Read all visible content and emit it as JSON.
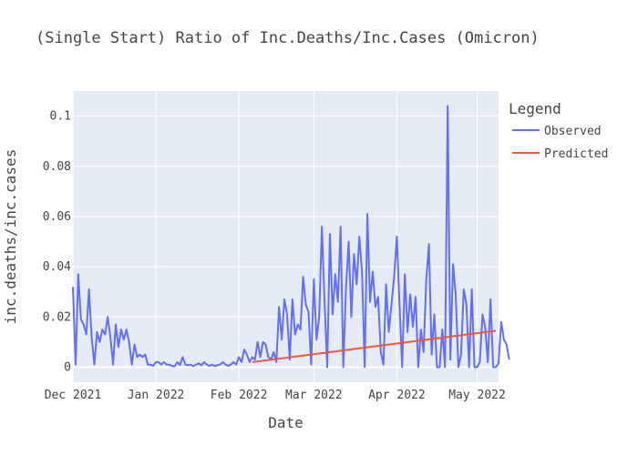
{
  "colors": {
    "plot_bg": "#e5ecf6",
    "grid": "#ffffff",
    "observed": "#636efa",
    "predicted": "#ef553b",
    "text": "#444444"
  },
  "chart_data": {
    "type": "line",
    "title": "(Single Start) Ratio of Inc.Deaths/Inc.Cases (Omicron)",
    "xlabel": "Date",
    "ylabel": "inc.deaths/inc.cases",
    "xlim": [
      "2021-12-01",
      "2022-05-09"
    ],
    "ylim": [
      -0.006,
      0.11
    ],
    "x_ticks": [
      {
        "date": "2021-12-01",
        "label": "Dec 2021"
      },
      {
        "date": "2022-01-01",
        "label": "Jan 2022"
      },
      {
        "date": "2022-02-01",
        "label": "Feb 2022"
      },
      {
        "date": "2022-03-01",
        "label": "Mar 2022"
      },
      {
        "date": "2022-04-01",
        "label": "Apr 2022"
      },
      {
        "date": "2022-05-01",
        "label": "May 2022"
      }
    ],
    "y_ticks": [
      {
        "value": 0,
        "label": "0"
      },
      {
        "value": 0.02,
        "label": "0.02"
      },
      {
        "value": 0.04,
        "label": "0.04"
      },
      {
        "value": 0.06,
        "label": "0.06"
      },
      {
        "value": 0.08,
        "label": "0.08"
      },
      {
        "value": 0.1,
        "label": "0.1"
      }
    ],
    "grid": true,
    "legend": {
      "title": "Legend",
      "placement": "right"
    },
    "series": [
      {
        "name": "Observed",
        "start": "2021-12-01",
        "step_days": 1,
        "values": [
          0.032,
          0.001,
          0.037,
          0.019,
          0.017,
          0.013,
          0.031,
          0.012,
          0.001,
          0.014,
          0.01,
          0.015,
          0.013,
          0.02,
          0.012,
          0.001,
          0.017,
          0.008,
          0.015,
          0.011,
          0.015,
          0.01,
          0.001,
          0.009,
          0.004,
          0.005,
          0.004,
          0.005,
          0.001,
          0.001,
          0.0005,
          0.002,
          0.002,
          0.001,
          0.002,
          0.001,
          0.001,
          0.0005,
          0.0003,
          0.002,
          0.0008,
          0.004,
          0.001,
          0.0008,
          0.001,
          0.0004,
          0.001,
          0.0015,
          0.0007,
          0.002,
          0.001,
          0.0005,
          0.001,
          0.0004,
          0.0008,
          0.001,
          0.002,
          0.001,
          0.0005,
          0.001,
          0.002,
          0.001,
          0.004,
          0.002,
          0.007,
          0.005,
          0.002,
          0.004,
          0.003,
          0.01,
          0.004,
          0.01,
          0.009,
          0.004,
          0.003,
          0.006,
          0.002,
          0.024,
          0.011,
          0.027,
          0.021,
          0.003,
          0.027,
          0.013,
          0.017,
          0.015,
          0.036,
          0.025,
          0.022,
          0.001,
          0.035,
          0.011,
          0.02,
          0.056,
          0.026,
          0.0,
          0.053,
          0.021,
          0.037,
          0.026,
          0.056,
          0.0,
          0.031,
          0.05,
          0.02,
          0.045,
          0.033,
          0.052,
          0.038,
          0.0,
          0.061,
          0.026,
          0.038,
          0.024,
          0.028,
          0.006,
          0.001,
          0.033,
          0.014,
          0.025,
          0.036,
          0.052,
          0.025,
          0.0,
          0.037,
          0.014,
          0.029,
          0.016,
          0.028,
          0.0,
          0.015,
          0.006,
          0.035,
          0.049,
          0.005,
          0.021,
          0.0,
          0.0,
          0.015,
          0.0,
          0.104,
          0.003,
          0.041,
          0.029,
          0.0,
          0.005,
          0.031,
          0.025,
          0.0,
          0.031,
          0.0,
          0.0,
          0.002,
          0.021,
          0.016,
          0.002,
          0.027,
          0.0,
          0.0,
          0.0015,
          0.018,
          0.011,
          0.009,
          0.003
        ]
      },
      {
        "name": "Predicted",
        "x": [
          "2022-02-06",
          "2022-05-08"
        ],
        "values": [
          0.002,
          0.0145
        ]
      }
    ]
  }
}
